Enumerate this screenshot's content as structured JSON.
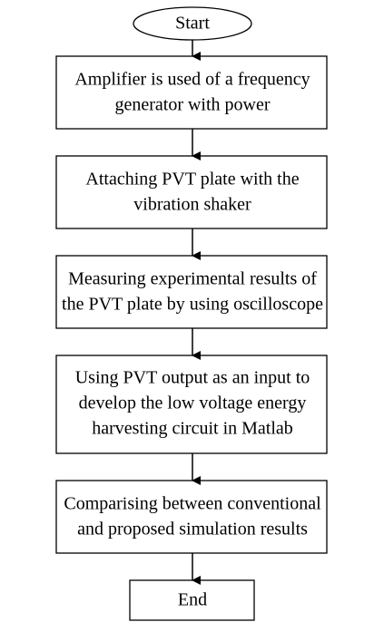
{
  "nodes": [
    {
      "lines": [
        "Start"
      ]
    },
    {
      "lines": [
        "Amplifier is used of a frequency",
        "generator with power"
      ]
    },
    {
      "lines": [
        "Attaching PVT plate with the",
        "vibration shaker"
      ]
    },
    {
      "lines": [
        "Measuring experimental results of",
        "the PVT plate by using oscilloscope"
      ]
    },
    {
      "lines": [
        "Using PVT output as an input to",
        "develop the low voltage energy",
        "harvesting circuit in Matlab"
      ]
    },
    {
      "lines": [
        "Comparising between conventional",
        "and proposed simulation results"
      ]
    },
    {
      "lines": [
        "End"
      ]
    }
  ]
}
